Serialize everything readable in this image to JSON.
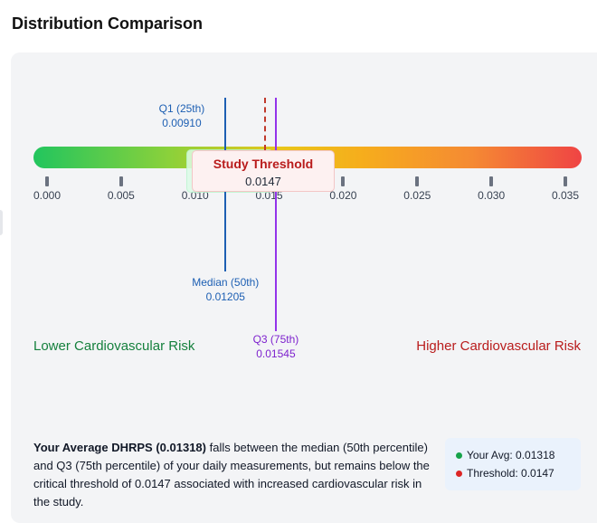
{
  "heading": "Distribution Comparison",
  "scale": {
    "min": 0.0,
    "max": 0.035,
    "gradient": [
      "#22c55e",
      "#f6ad1c",
      "#ef4444"
    ],
    "ticks": [
      {
        "value": 0.0,
        "label": "0.000"
      },
      {
        "value": 0.005,
        "label": "0.005"
      },
      {
        "value": 0.01,
        "label": "0.010"
      },
      {
        "value": 0.015,
        "label": "0.015"
      },
      {
        "value": 0.02,
        "label": "0.020"
      },
      {
        "value": 0.025,
        "label": "0.025"
      },
      {
        "value": 0.03,
        "label": "0.030"
      },
      {
        "value": 0.035,
        "label": "0.035"
      }
    ]
  },
  "markers": {
    "q1": {
      "label": "Q1 (25th)",
      "value": "0.00910",
      "number": 0.0091
    },
    "median": {
      "label": "Median (50th)",
      "value": "0.01205",
      "number": 0.01205
    },
    "q3": {
      "label": "Q3 (75th)",
      "value": "0.01545",
      "number": 0.01545
    },
    "threshold": {
      "label": "Study Threshold",
      "value": "0.0147",
      "number": 0.0147
    }
  },
  "risk": {
    "low": "Lower Cardiovascular Risk",
    "high": "Higher Cardiovascular Risk"
  },
  "summary": {
    "bold": "Your Average DHRPS (0.01318)",
    "text": " falls between the median (50th percentile) and Q3 (75th percentile) of your daily measurements, but remains below the critical threshold of 0.0147 associated with increased cardiovascular risk in the study."
  },
  "legend": {
    "avg": {
      "label": "Your Avg: 0.01318",
      "color": "#16a34a"
    },
    "threshold": {
      "label": "Threshold: 0.0147",
      "color": "#dc2626"
    }
  },
  "colors": {
    "median_line": "#1d5fb3",
    "q3_line": "#9333ea",
    "threshold_line": "#c0392b"
  }
}
